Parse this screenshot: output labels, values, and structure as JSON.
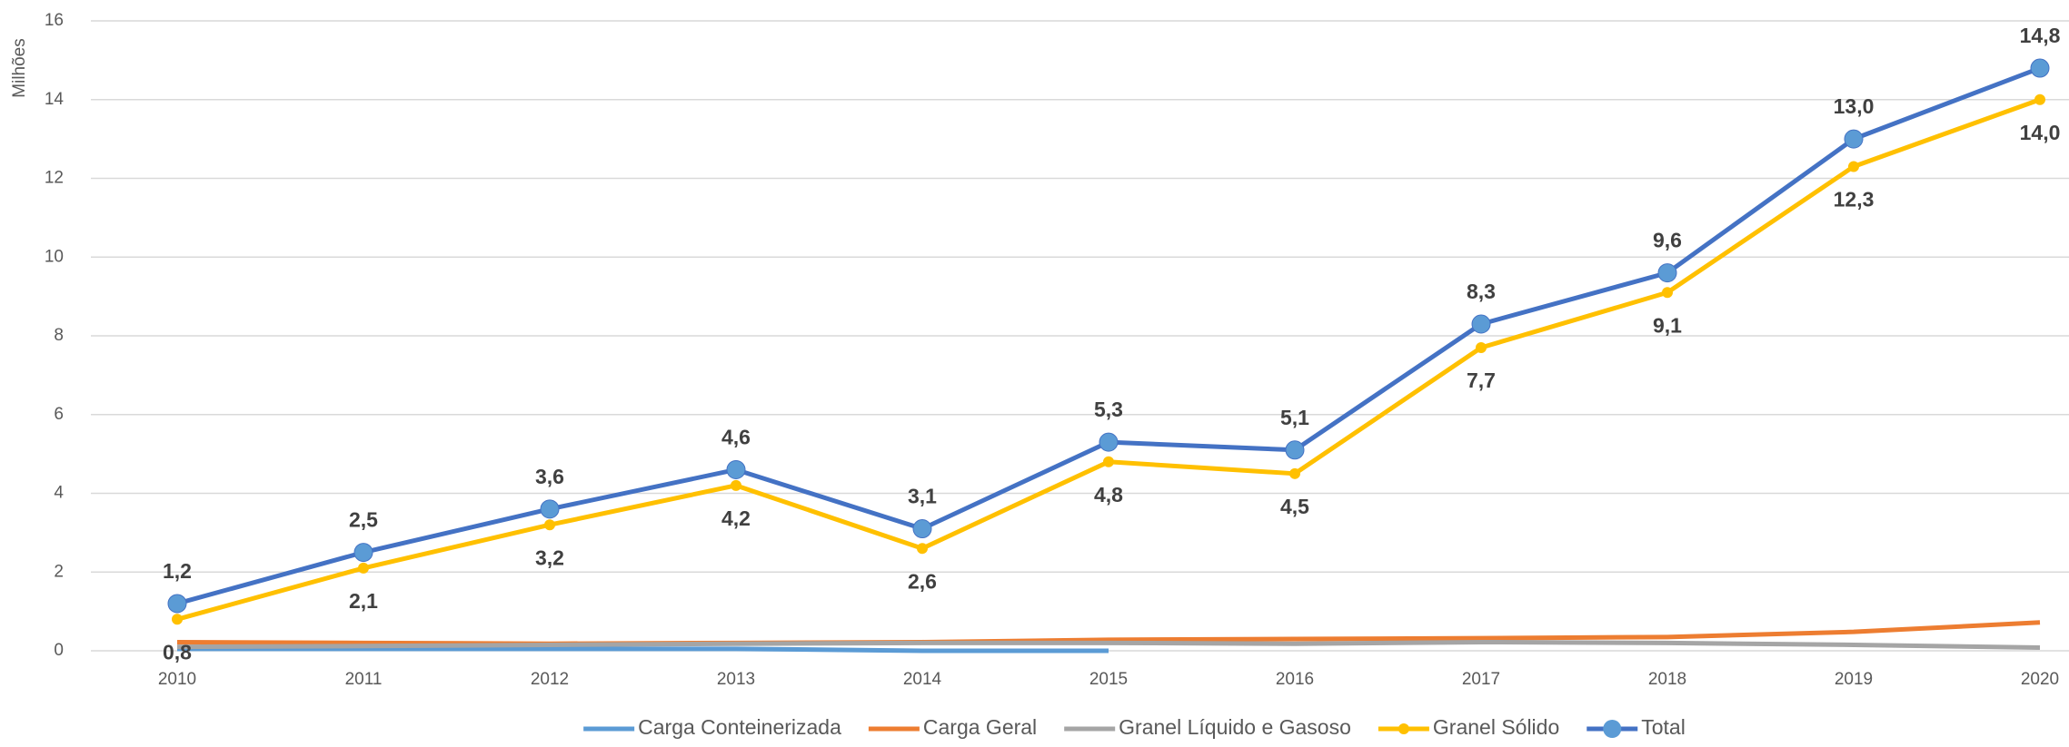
{
  "chart_data": {
    "type": "line",
    "y_label": "Milhões",
    "categories": [
      "2010",
      "2011",
      "2012",
      "2013",
      "2014",
      "2015",
      "2016",
      "2017",
      "2018",
      "2019",
      "2020"
    ],
    "series": [
      {
        "name": "Carga Conteinerizada",
        "color": "#5b9bd5",
        "values": [
          0.05,
          0.05,
          0.05,
          0.05,
          0.0,
          0.0,
          null,
          null,
          null,
          null,
          null
        ]
      },
      {
        "name": "Carga Geral",
        "color": "#ed7d31",
        "values": [
          0.22,
          0.2,
          0.18,
          0.2,
          0.22,
          0.28,
          0.3,
          0.32,
          0.35,
          0.48,
          0.72
        ]
      },
      {
        "name": "Granel Líquido e Gasoso",
        "color": "#a5a5a5",
        "values": [
          0.1,
          0.12,
          0.15,
          0.18,
          0.2,
          0.2,
          0.18,
          0.22,
          0.2,
          0.15,
          0.08
        ]
      },
      {
        "name": "Granel Sólido",
        "color": "#ffc000",
        "marker": true,
        "label_side": "below",
        "values": [
          0.8,
          2.1,
          3.2,
          4.2,
          2.6,
          4.8,
          4.5,
          7.7,
          9.1,
          12.3,
          14.0
        ],
        "value_labels": [
          "0,8",
          "2,1",
          "3,2",
          "4,2",
          "2,6",
          "4,8",
          "4,5",
          "7,7",
          "9,1",
          "12,3",
          "14,0"
        ]
      },
      {
        "name": "Total",
        "color": "#4472c4",
        "marker": true,
        "marker_color": "#5b9bd5",
        "label_side": "above",
        "values": [
          1.2,
          2.5,
          3.6,
          4.6,
          3.1,
          5.3,
          5.1,
          8.3,
          9.6,
          13.0,
          14.8
        ],
        "value_labels": [
          "1,2",
          "2,5",
          "3,6",
          "4,6",
          "3,1",
          "5,3",
          "5,1",
          "8,3",
          "9,6",
          "13,0",
          "14,8"
        ]
      }
    ],
    "ylim": [
      0,
      16
    ],
    "yticks": [
      0,
      2,
      4,
      6,
      8,
      10,
      12,
      14,
      16
    ],
    "grid": true,
    "legend": "bottom"
  }
}
